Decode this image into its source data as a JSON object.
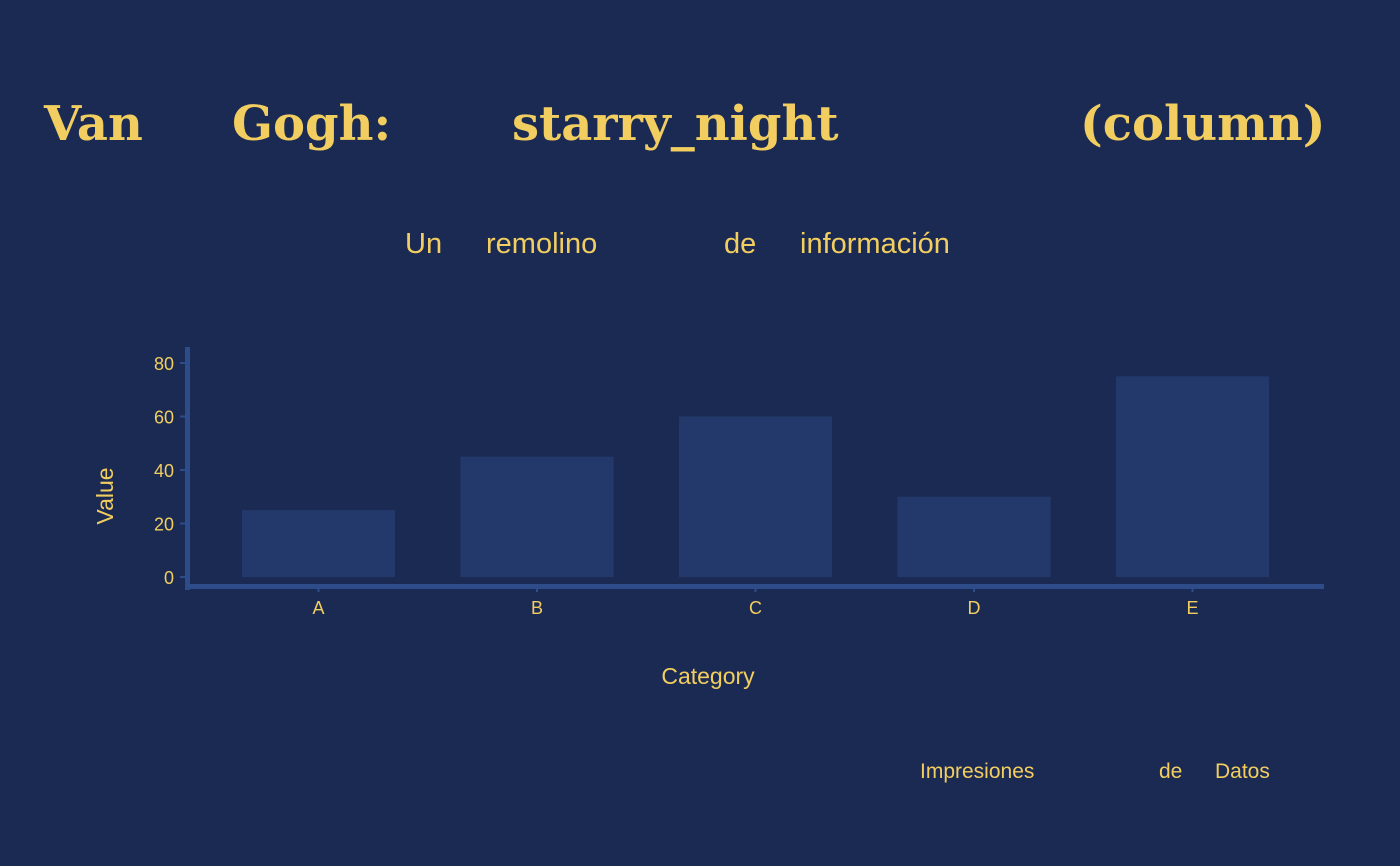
{
  "title": {
    "words": [
      "Van",
      "Gogh:",
      "starry_night",
      "(column)"
    ]
  },
  "subtitle": {
    "words": [
      "Un",
      "remolino",
      "de",
      "información"
    ]
  },
  "caption": {
    "words": [
      "Impresiones",
      "de",
      "Datos"
    ]
  },
  "colors": {
    "background": "#1b2a52",
    "accent": "#f2ce60",
    "bar": "#24396b",
    "axis": "#2f4c8a"
  },
  "chart_data": {
    "type": "bar",
    "title": "Van Gogh: starry_night (column)",
    "subtitle": "Un remolino de información",
    "caption": "Impresiones de Datos",
    "categories": [
      "A",
      "B",
      "C",
      "D",
      "E"
    ],
    "values": [
      25,
      45,
      60,
      30,
      75
    ],
    "xlabel": "Category",
    "ylabel": "Value",
    "ylim": [
      0,
      85
    ],
    "yticks": [
      0,
      20,
      40,
      60,
      80
    ],
    "grid": false,
    "legend": "none"
  }
}
